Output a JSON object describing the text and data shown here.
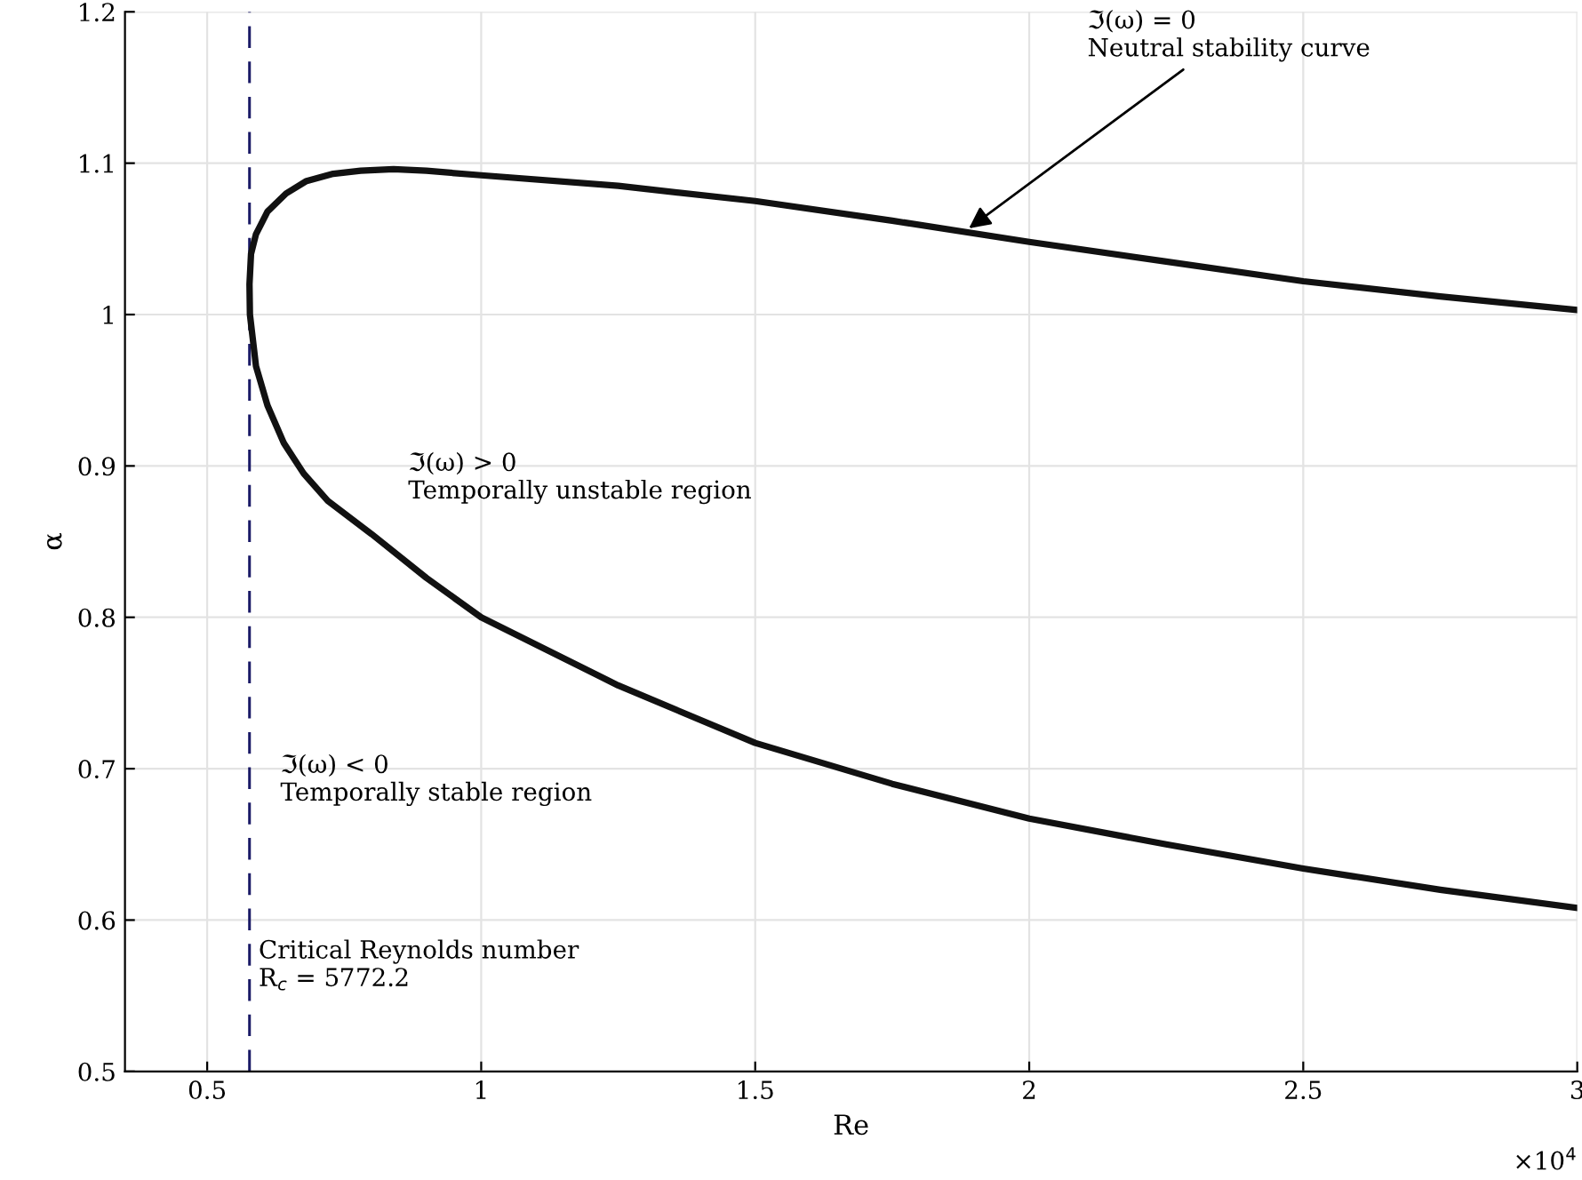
{
  "chart_data": {
    "type": "line",
    "xlabel": "Re",
    "ylabel": "α",
    "series": [
      {
        "color": "#111111",
        "x": [
          3,
          2.75,
          2.5,
          2.25,
          2,
          1.75,
          1.5,
          1.25,
          1,
          0.9,
          0.84,
          0.78,
          0.73,
          0.68,
          0.644,
          0.61,
          0.589,
          0.58,
          0.5772,
          0.578,
          0.589,
          0.61,
          0.64,
          0.676,
          0.72,
          0.8,
          0.9,
          1,
          1.25,
          1.5,
          1.75,
          2,
          2.25,
          2.5,
          2.75,
          3
        ],
        "values": [
          1.003,
          1.012,
          1.022,
          1.035,
          1.048,
          1.062,
          1.075,
          1.085,
          1.092,
          1.095,
          1.096,
          1.095,
          1.093,
          1.088,
          1.08,
          1.068,
          1.053,
          1.04,
          1.02,
          1.0,
          0.966,
          0.94,
          0.915,
          0.895,
          0.877,
          0.855,
          0.826,
          0.8,
          0.755,
          0.717,
          0.69,
          0.667,
          0.65,
          0.634,
          0.62,
          0.608
        ]
      }
    ],
    "xlim": [
      0.35,
      3
    ],
    "xticks": [
      0.5,
      1,
      1.5,
      2,
      2.5,
      3
    ],
    "ylim": [
      0.5,
      1.2
    ],
    "yticks": [
      0.5,
      0.6,
      0.7,
      0.8,
      0.9,
      1,
      1.1,
      1.2
    ],
    "ref_lines": [
      {
        "axis": "x",
        "value": 0.57722,
        "color": "#1a1a66",
        "line_style": "dashed"
      }
    ],
    "annotations": [
      {
        "text": "ℑ(ω) = 0\nNeutral stability curve",
        "x": 1.89,
        "y": 1.057
      },
      "ℑ(ω) > 0\nTemporally unstable region",
      "ℑ(ω) < 0\nTemporally stable region",
      "×10$^{4}$",
      "Critical Reynolds number\nR$_{c}$ = 5772.2"
    ],
    "grid": true,
    "marker": "none",
    "line_style": "solid"
  }
}
